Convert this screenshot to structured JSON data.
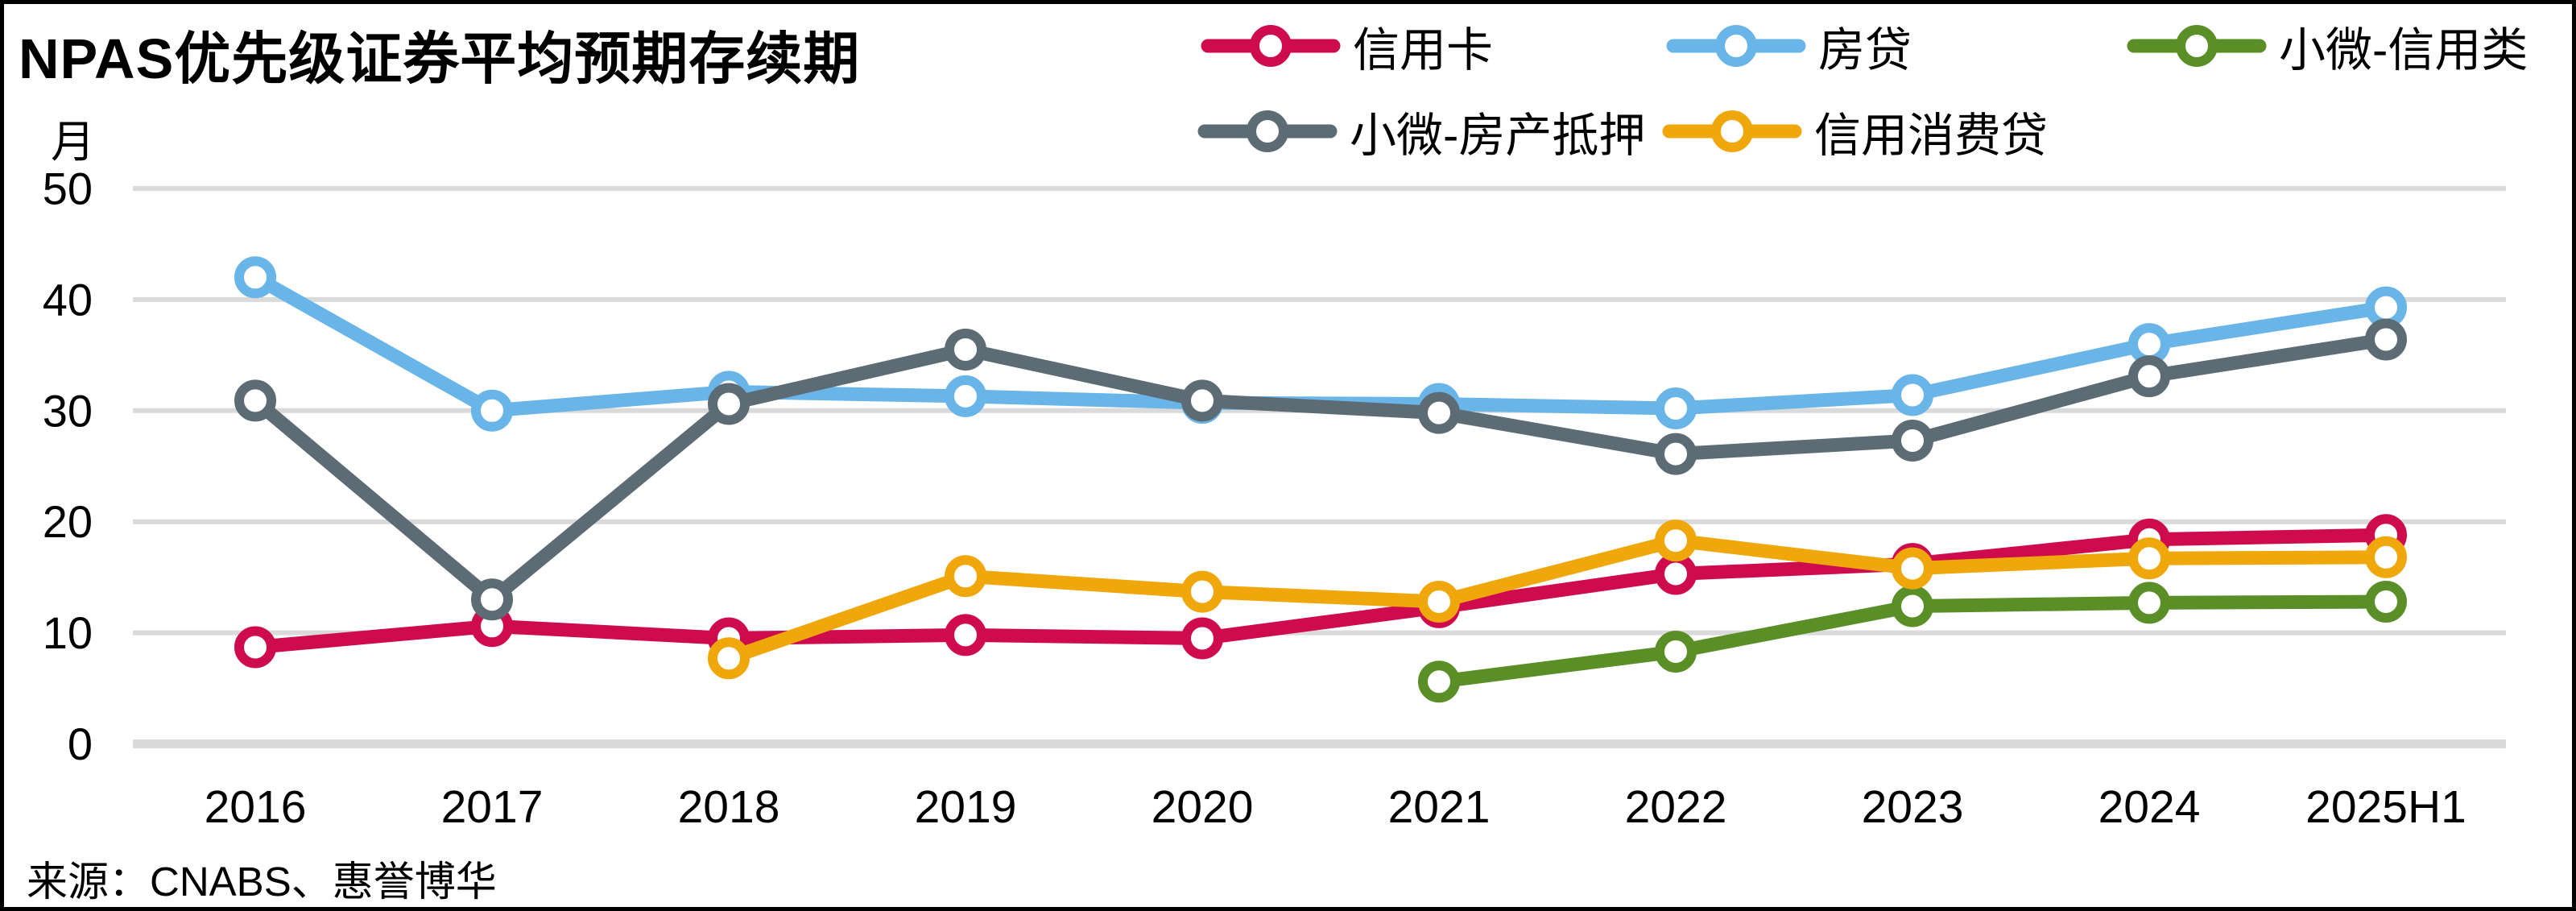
{
  "title": "NPAS优先级证券平均预期存续期",
  "y_unit": "月",
  "source": "来源：CNABS、惠誉博华",
  "colors": {
    "grid": "#DADADA",
    "text": "#000000",
    "background": "#FFFFFF"
  },
  "chart_data": {
    "type": "line",
    "title": "NPAS优先级证券平均预期存续期",
    "ylabel": "月",
    "categories": [
      "2016",
      "2017",
      "2018",
      "2019",
      "2020",
      "2021",
      "2022",
      "2023",
      "2024",
      "2025H1"
    ],
    "y_ticks": [
      0,
      10,
      20,
      30,
      40,
      50
    ],
    "ylim": [
      0,
      50
    ],
    "grid": "horizontal",
    "legend_position": "top-right",
    "marker": "open-circle",
    "series": [
      {
        "name": "信用卡",
        "color": "#CE0B4D",
        "values": [
          8.7,
          10.6,
          9.5,
          9.8,
          9.5,
          12.3,
          15.3,
          16.2,
          18.4,
          18.8
        ]
      },
      {
        "name": "房贷",
        "color": "#6AB5E7",
        "values": [
          42.0,
          30.0,
          31.7,
          31.3,
          30.7,
          30.6,
          30.2,
          31.4,
          36.0,
          39.3
        ]
      },
      {
        "name": "小微-信用类",
        "color": "#5A8F28",
        "values": [
          null,
          null,
          null,
          null,
          null,
          5.6,
          8.3,
          12.4,
          12.7,
          12.8
        ]
      },
      {
        "name": "小微-房产抵押",
        "color": "#5C6B74",
        "values": [
          30.9,
          13.0,
          30.6,
          35.5,
          30.9,
          29.8,
          26.1,
          27.3,
          33.1,
          36.4
        ]
      },
      {
        "name": "信用消费贷",
        "color": "#F0A70B",
        "values": [
          null,
          null,
          7.7,
          15.1,
          13.7,
          12.8,
          18.3,
          15.8,
          16.7,
          16.8
        ]
      }
    ]
  }
}
